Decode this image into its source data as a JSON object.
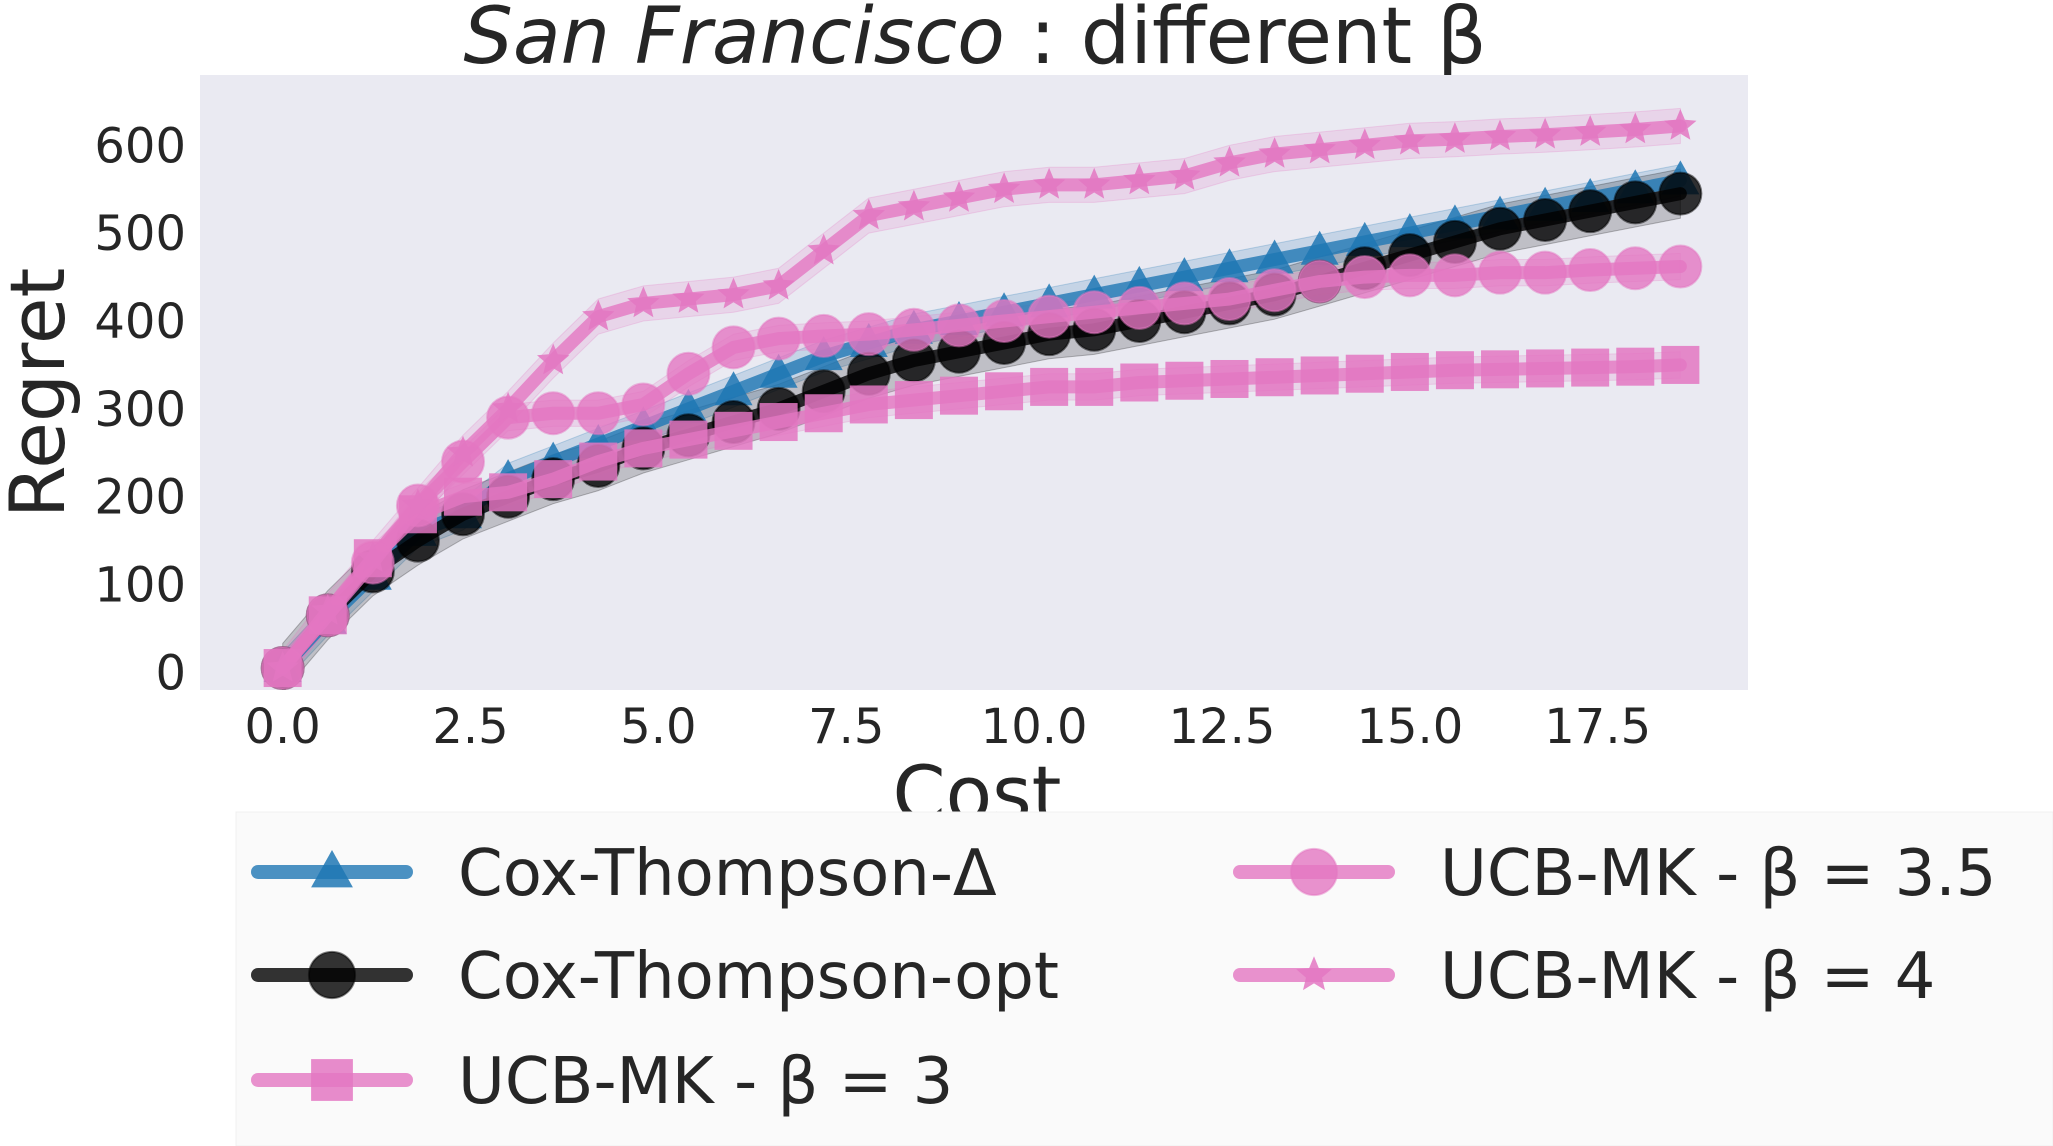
{
  "chart_data": {
    "type": "line",
    "title": {
      "italic": "San Francisco",
      "rest": " :  different β"
    },
    "xlabel": "Cost",
    "ylabel": "Regret",
    "xlim": [
      -1.1,
      19.5
    ],
    "ylim": [
      -20,
      680
    ],
    "xticks": [
      0.0,
      2.5,
      5.0,
      7.5,
      10.0,
      12.5,
      15.0,
      17.5
    ],
    "xtick_labels": [
      "0.0",
      "2.5",
      "5.0",
      "7.5",
      "10.0",
      "12.5",
      "15.0",
      "17.5"
    ],
    "yticks": [
      0,
      100,
      200,
      300,
      400,
      500,
      600
    ],
    "ytick_labels": [
      "0",
      "100",
      "200",
      "300",
      "400",
      "500",
      "600"
    ],
    "grid": false,
    "legend_position": "below",
    "background": "#eaeaf2",
    "x": [
      0.0,
      0.6,
      1.2,
      1.8,
      2.4,
      3.0,
      3.6,
      4.2,
      4.8,
      5.4,
      6.0,
      6.6,
      7.2,
      7.8,
      8.4,
      9.0,
      9.6,
      10.2,
      10.8,
      11.4,
      12.0,
      12.6,
      13.2,
      13.8,
      14.4,
      15.0,
      15.6,
      16.2,
      16.8,
      17.4,
      18.0,
      18.6
    ],
    "series": [
      {
        "name": "Cox-Thompson-Δ",
        "color": "#1f77b4",
        "marker": "triangle",
        "values": [
          5,
          60,
          110,
          160,
          180,
          220,
          240,
          260,
          280,
          300,
          320,
          340,
          360,
          375,
          390,
          400,
          410,
          420,
          430,
          440,
          450,
          460,
          470,
          480,
          490,
          500,
          510,
          520,
          530,
          540,
          550,
          560
        ],
        "band": 18
      },
      {
        "name": "Cox-Thompson-opt",
        "color": "#000000",
        "marker": "circle",
        "values": [
          5,
          65,
          115,
          150,
          180,
          200,
          220,
          235,
          255,
          270,
          285,
          300,
          320,
          340,
          355,
          365,
          375,
          385,
          390,
          400,
          410,
          420,
          430,
          445,
          460,
          475,
          490,
          505,
          515,
          525,
          535,
          545
        ],
        "band": 28
      },
      {
        "name": "UCB-MK - β = 3",
        "color": "#e377c2",
        "marker": "square",
        "values": [
          5,
          65,
          130,
          180,
          200,
          205,
          220,
          240,
          255,
          265,
          275,
          285,
          295,
          305,
          310,
          315,
          320,
          325,
          325,
          330,
          332,
          334,
          336,
          338,
          340,
          342,
          344,
          345,
          346,
          347,
          348,
          350
        ],
        "band": 15
      },
      {
        "name": "UCB-MK - β = 3.5",
        "color": "#e377c2",
        "marker": "circle",
        "values": [
          5,
          65,
          125,
          190,
          240,
          290,
          295,
          295,
          305,
          340,
          370,
          380,
          383,
          385,
          390,
          395,
          400,
          405,
          410,
          415,
          420,
          425,
          435,
          445,
          450,
          452,
          452,
          455,
          455,
          458,
          460,
          462
        ],
        "band": 15
      },
      {
        "name": "UCB-MK - β = 4",
        "color": "#e377c2",
        "marker": "star",
        "values": [
          5,
          70,
          130,
          190,
          250,
          300,
          355,
          405,
          420,
          425,
          430,
          440,
          480,
          520,
          530,
          540,
          550,
          555,
          555,
          560,
          565,
          580,
          590,
          595,
          600,
          605,
          607,
          610,
          612,
          615,
          618,
          622
        ],
        "band": 20
      }
    ]
  }
}
